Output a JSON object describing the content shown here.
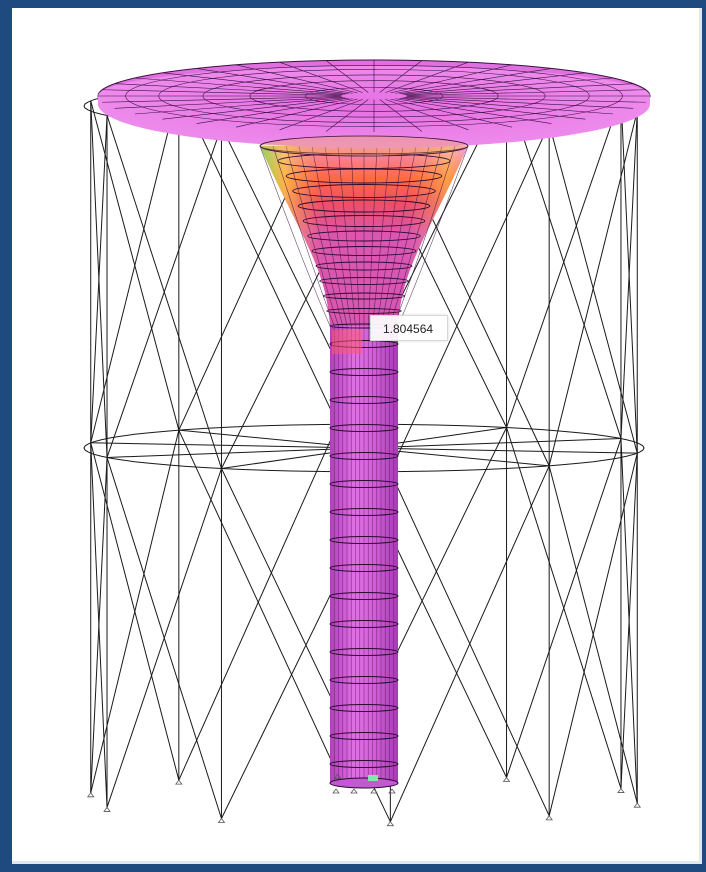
{
  "viewport": {
    "tooltip_value": "1.804564"
  },
  "colors": {
    "background": "#1f4a80",
    "canvas": "#ffffff",
    "shell": "#e15ee6",
    "shell_light": "#ea86ea",
    "hot": "#ff3b3b",
    "warm": "#f7a23b",
    "mild": "#ffe64a",
    "cool": "#8fe33d",
    "wire": "#1a1a1a"
  },
  "icons": {
    "support": "support-marker-icon"
  }
}
